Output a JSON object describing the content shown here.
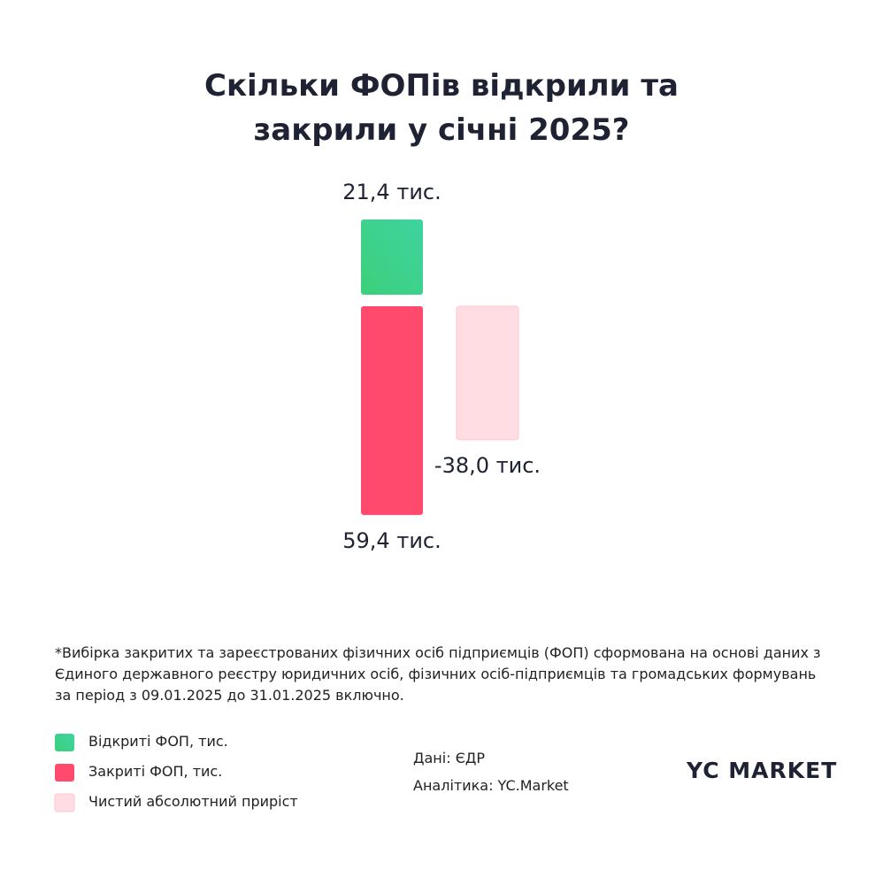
{
  "chart_data": {
    "type": "bar",
    "title": "Скільки ФОПів відкрили та закрили у січні 2025?",
    "series": [
      {
        "name": "Відкриті ФОП, тис.",
        "color": "#3ecf85",
        "values": [
          21.4
        ],
        "value_labels": [
          "21,4 тис."
        ]
      },
      {
        "name": "Закриті ФОП, тис.",
        "color": "#ff4a6e",
        "values": [
          59.4
        ],
        "value_labels": [
          "59,4 тис."
        ]
      },
      {
        "name": "Чистий абсолютний приріст",
        "color": "#ffdde2",
        "values": [
          -38.0
        ],
        "value_labels": [
          "-38,0 тис."
        ]
      }
    ],
    "note": "*Вибірка закритих та зареєстрованих фізичних осіб підприємців (ФОП) сформована на основі даних з Єдиного державного реєстру юридичних осіб, фізичних осіб-підприємців та громадських формувань за період з 09.01.2025 до 31.01.2025 включно.",
    "source": "Дані: ЄДР",
    "analytics": "Аналітика: YC.Market",
    "logo": "YC MARKET"
  }
}
